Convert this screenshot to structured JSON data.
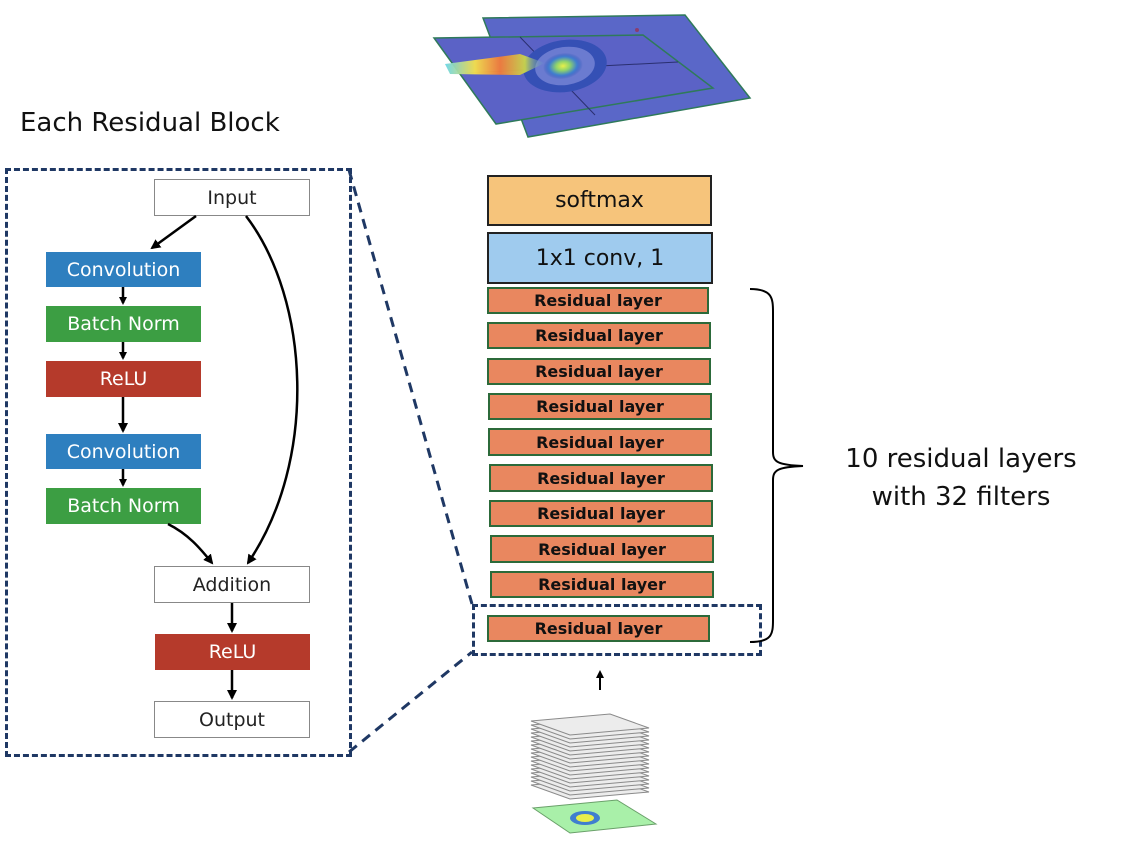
{
  "block_title": "Each Residual Block",
  "block": {
    "input": "Input",
    "conv1": "Convolution",
    "bn1": "Batch Norm",
    "relu1": "ReLU",
    "conv2": "Convolution",
    "bn2": "Batch Norm",
    "addition": "Addition",
    "relu2": "ReLU",
    "output": "Output"
  },
  "network": {
    "softmax": "softmax",
    "conv": "1x1 conv, 1",
    "residual_layers": [
      "Residual layer",
      "Residual layer",
      "Residual layer",
      "Residual layer",
      "Residual layer",
      "Residual layer",
      "Residual layer",
      "Residual layer",
      "Residual layer",
      "Residual layer"
    ]
  },
  "annotation": {
    "line1": "10 residual layers",
    "line2": "with 32 filters"
  }
}
